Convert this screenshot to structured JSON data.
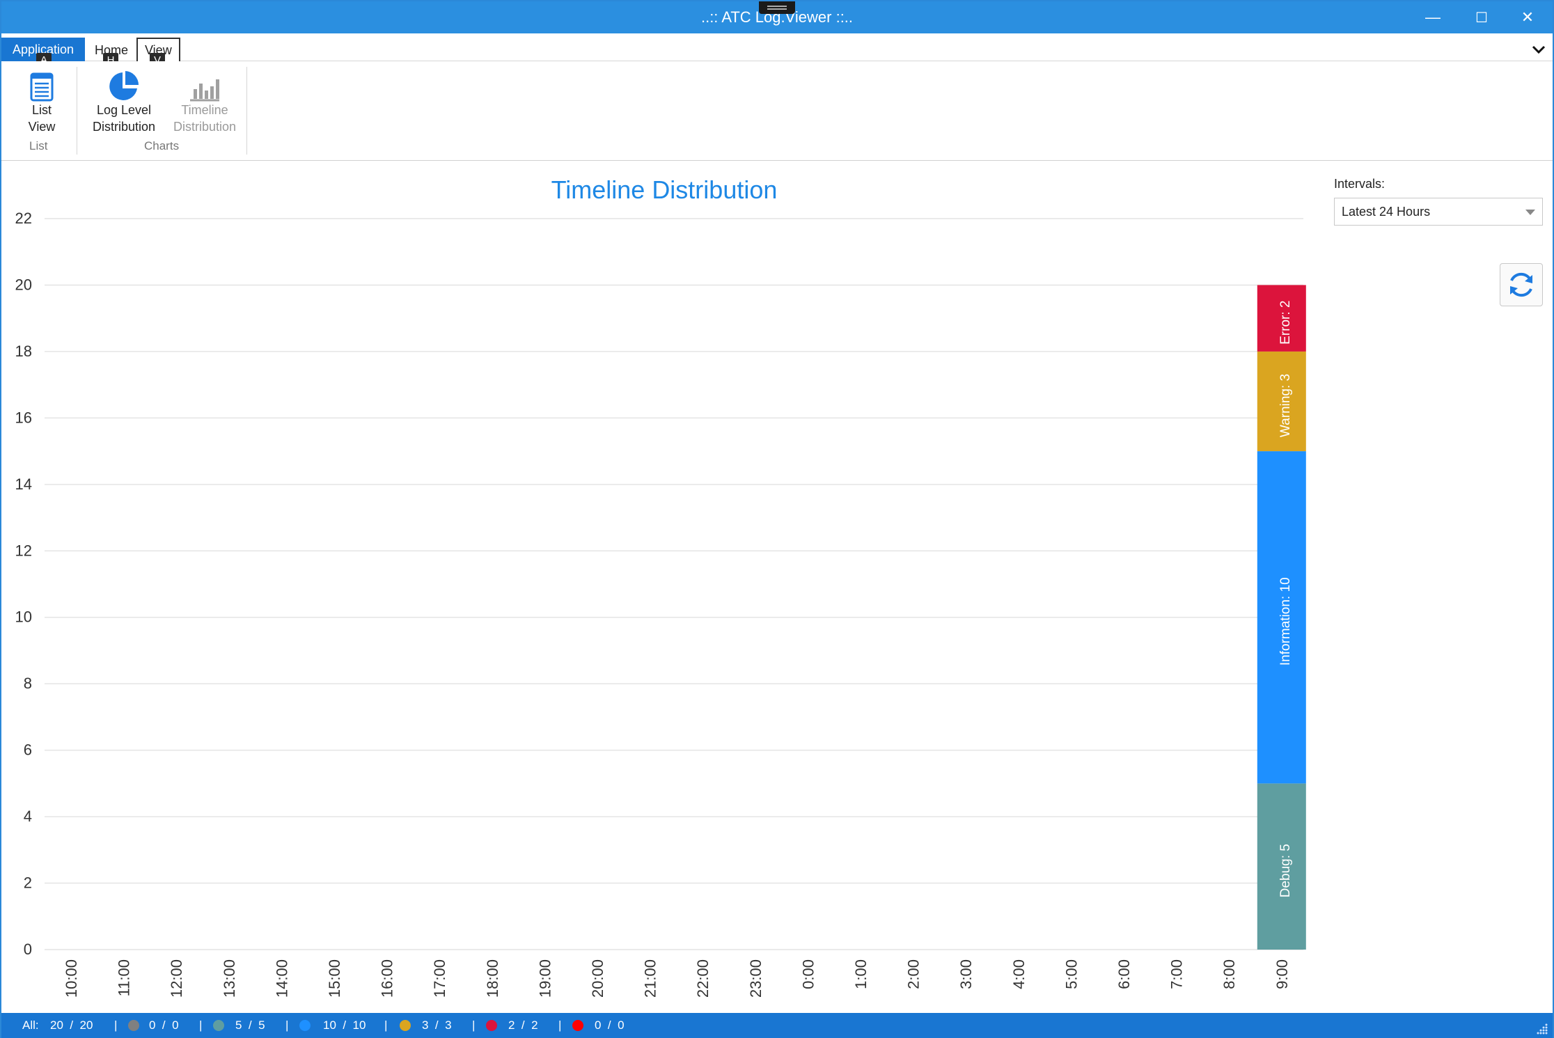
{
  "window": {
    "title": "..:: ATC Log.Viewer ::..",
    "minimize": "—",
    "maximize": "☐",
    "close": "✕"
  },
  "ribbon": {
    "tabs": {
      "application": "Application",
      "home": "Home",
      "view": "View"
    },
    "keytips": {
      "application": "A",
      "home": "H",
      "view": "V"
    },
    "buttons": {
      "list_view_line1": "List",
      "list_view_line2": "View",
      "log_level_line1": "Log Level",
      "log_level_line2": "Distribution",
      "timeline_line1": "Timeline",
      "timeline_line2": "Distribution"
    },
    "groups": {
      "list": "List",
      "charts": "Charts"
    },
    "collapse_icon": "chevron-down"
  },
  "intervals": {
    "label": "Intervals:",
    "selected": "Latest 24 Hours"
  },
  "chart_data": {
    "type": "bar",
    "title": "Timeline Distribution",
    "stacked": true,
    "ylim": [
      0,
      22
    ],
    "yticks": [
      0,
      2,
      4,
      6,
      8,
      10,
      12,
      14,
      16,
      18,
      20,
      22
    ],
    "categories": [
      "10:00",
      "11:00",
      "12:00",
      "13:00",
      "14:00",
      "15:00",
      "16:00",
      "17:00",
      "18:00",
      "19:00",
      "20:00",
      "21:00",
      "22:00",
      "23:00",
      "0:00",
      "1:00",
      "2:00",
      "3:00",
      "4:00",
      "5:00",
      "6:00",
      "7:00",
      "8:00",
      "9:00"
    ],
    "series": [
      {
        "name": "Debug",
        "color": "#5f9ea0",
        "values": [
          0,
          0,
          0,
          0,
          0,
          0,
          0,
          0,
          0,
          0,
          0,
          0,
          0,
          0,
          0,
          0,
          0,
          0,
          0,
          0,
          0,
          0,
          0,
          5
        ]
      },
      {
        "name": "Information",
        "color": "#1e90ff",
        "values": [
          0,
          0,
          0,
          0,
          0,
          0,
          0,
          0,
          0,
          0,
          0,
          0,
          0,
          0,
          0,
          0,
          0,
          0,
          0,
          0,
          0,
          0,
          0,
          10
        ]
      },
      {
        "name": "Warning",
        "color": "#daa520",
        "values": [
          0,
          0,
          0,
          0,
          0,
          0,
          0,
          0,
          0,
          0,
          0,
          0,
          0,
          0,
          0,
          0,
          0,
          0,
          0,
          0,
          0,
          0,
          0,
          3
        ]
      },
      {
        "name": "Error",
        "color": "#dc143c",
        "values": [
          0,
          0,
          0,
          0,
          0,
          0,
          0,
          0,
          0,
          0,
          0,
          0,
          0,
          0,
          0,
          0,
          0,
          0,
          0,
          0,
          0,
          0,
          0,
          2
        ]
      }
    ],
    "grid": true,
    "legend": "none"
  },
  "status": {
    "all_label": "All:",
    "all": "20  /  20",
    "trace": "0  /  0",
    "debug": "5  /  5",
    "info": "10  /  10",
    "warning": "3  /  3",
    "error": "2  /  2",
    "fatal": "0  /  0",
    "separator": "|",
    "colors": {
      "trace": "#808080",
      "debug": "#5f9ea0",
      "info": "#1e90ff",
      "warning": "#daa520",
      "error": "#dc143c",
      "fatal": "#ff0000"
    }
  }
}
